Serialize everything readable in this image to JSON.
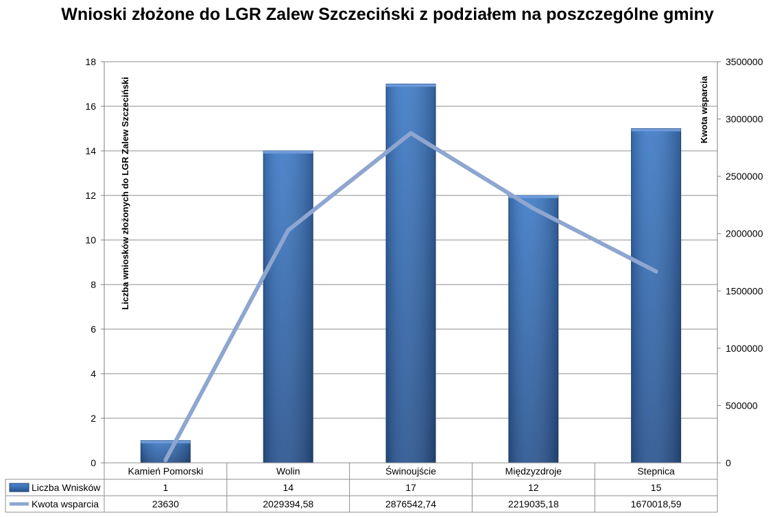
{
  "chart_data": {
    "type": "bar",
    "title": "Wnioski  złożone do LGR Zalew Szczeciński z podziałem na poszczególne gminy",
    "categories": [
      "Kamień Pomorski",
      "Wolin",
      "Świnoujście",
      "Międzyzdroje",
      "Stepnica"
    ],
    "ylabel_left": "Liczba wniosków złożonych do LGR Zalew  Szczeciński",
    "ylabel_right": "Kwota wsparcia",
    "ylim_left": [
      0,
      18
    ],
    "ylim_right": [
      0,
      3500000
    ],
    "yticks_left": [
      "0",
      "2",
      "4",
      "6",
      "8",
      "10",
      "12",
      "14",
      "16",
      "18"
    ],
    "yticks_right": [
      "0",
      "500000",
      "1000000",
      "1500000",
      "2000000",
      "2500000",
      "3000000",
      "3500000"
    ],
    "grid": true,
    "series": [
      {
        "name": "Liczba Wnisków",
        "type": "bar",
        "axis": "left",
        "values": [
          1,
          14,
          17,
          12,
          15
        ],
        "labels": [
          "1",
          "14",
          "17",
          "12",
          "15"
        ],
        "color": "#3a6fb4"
      },
      {
        "name": "Kwota wsparcia",
        "type": "line",
        "axis": "right",
        "values": [
          23630,
          2029394.58,
          2876542.74,
          2219035.18,
          1670018.59
        ],
        "labels": [
          "23630",
          "2029394,58",
          "2876542,74",
          "2219035,18",
          "1670018,59"
        ],
        "color": "#8ea6d0"
      }
    ],
    "legend": "data-table-left"
  }
}
